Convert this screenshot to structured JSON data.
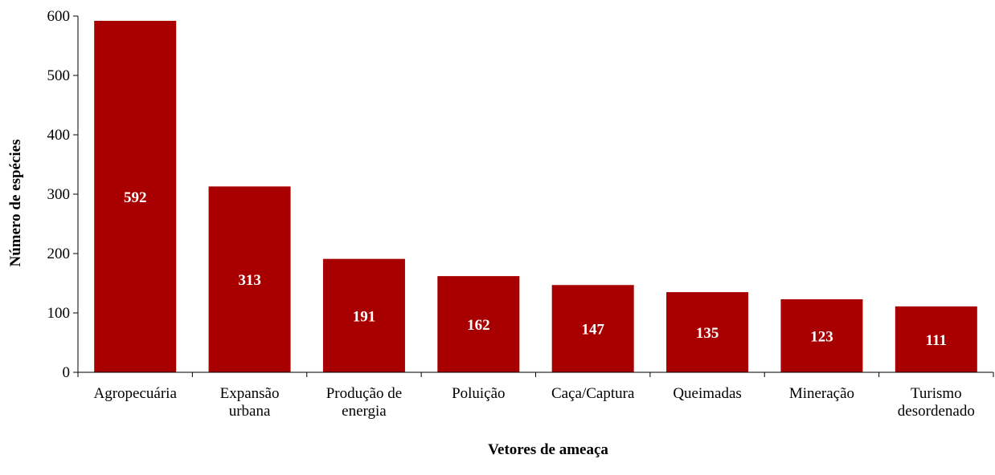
{
  "chart_data": {
    "type": "bar",
    "title": "",
    "xlabel": "Vetores de ameaça",
    "ylabel": "Número de espécies",
    "categories": [
      [
        "Agropecuária"
      ],
      [
        "Expansão",
        "urbana"
      ],
      [
        "Produção de",
        "energia"
      ],
      [
        "Poluição"
      ],
      [
        "Caça/Captura"
      ],
      [
        "Queimadas"
      ],
      [
        "Mineração"
      ],
      [
        "Turismo",
        "desordenado"
      ]
    ],
    "values": [
      592,
      313,
      191,
      162,
      147,
      135,
      123,
      111
    ],
    "ylim": [
      0,
      600
    ],
    "yticks": [
      0,
      100,
      200,
      300,
      400,
      500,
      600
    ],
    "grid": false,
    "legend": "none",
    "bar_color": "#a80000"
  }
}
